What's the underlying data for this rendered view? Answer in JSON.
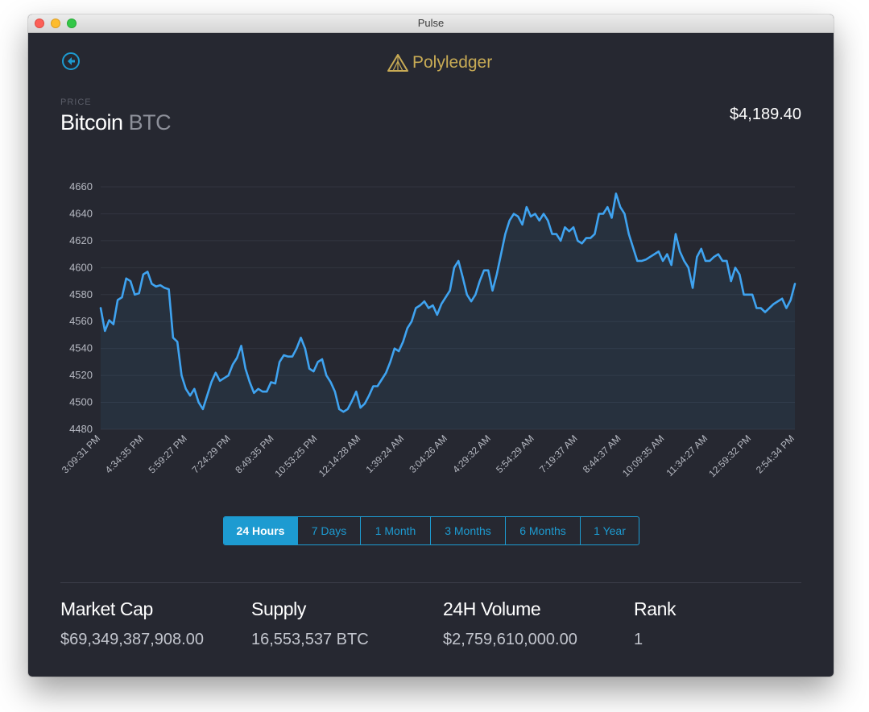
{
  "window": {
    "title": "Pulse"
  },
  "header": {
    "brand": "Polyledger",
    "brand_color": "#c8ab55",
    "back_icon": "back-arrow-icon"
  },
  "coin": {
    "label": "PRICE",
    "name": "Bitcoin",
    "symbol": "BTC",
    "price": "$4,189.40"
  },
  "colors": {
    "accent": "#1d9bd1",
    "line": "#3fa3f0",
    "background": "#262831"
  },
  "range": {
    "selected": "24 Hours",
    "options": [
      "24 Hours",
      "7 Days",
      "1 Month",
      "3 Months",
      "6 Months",
      "1 Year"
    ]
  },
  "stats": [
    {
      "label": "Market Cap",
      "value": "$69,349,387,908.00"
    },
    {
      "label": "Supply",
      "value": "16,553,537 BTC"
    },
    {
      "label": "24H Volume",
      "value": "$2,759,610,000.00"
    },
    {
      "label": "Rank",
      "value": "1"
    }
  ],
  "chart_data": {
    "type": "area",
    "xlabel": "",
    "ylabel": "",
    "ylim": [
      4480,
      4660
    ],
    "yticks": [
      4660,
      4640,
      4620,
      4600,
      4580,
      4560,
      4540,
      4520,
      4500,
      4480
    ],
    "grid": true,
    "legend": "none",
    "x_tick_labels": [
      "3:09:31 PM",
      "4:34:35 PM",
      "5:59:27 PM",
      "7:24:29 PM",
      "8:49:35 PM",
      "10:53:25 PM",
      "12:14:28 AM",
      "1:39:24 AM",
      "3:04:26 AM",
      "4:29:32 AM",
      "5:54:29 AM",
      "7:19:37 AM",
      "8:44:37 AM",
      "10:09:35 AM",
      "11:34:27 AM",
      "12:59:32 PM",
      "2:54:34 PM"
    ],
    "series": [
      {
        "values": [
          4570,
          4553,
          4561,
          4558,
          4576,
          4578,
          4592,
          4590,
          4580,
          4581,
          4595,
          4597,
          4588,
          4586,
          4587,
          4585,
          4584,
          4548,
          4545,
          4520,
          4510,
          4505,
          4510,
          4500,
          4495,
          4505,
          4515,
          4522,
          4516,
          4518,
          4520,
          4528,
          4533,
          4542,
          4525,
          4515,
          4507,
          4510,
          4508,
          4508,
          4515,
          4514,
          4530,
          4535,
          4534,
          4534,
          4540,
          4548,
          4540,
          4525,
          4523,
          4530,
          4532,
          4520,
          4515,
          4508,
          4495,
          4493,
          4495,
          4501,
          4508,
          4496,
          4499,
          4505,
          4512,
          4512,
          4517,
          4522,
          4530,
          4540,
          4538,
          4545,
          4555,
          4560,
          4570,
          4572,
          4575,
          4570,
          4572,
          4565,
          4573,
          4578,
          4583,
          4600,
          4605,
          4593,
          4580,
          4575,
          4580,
          4590,
          4598,
          4598,
          4583,
          4595,
          4610,
          4625,
          4635,
          4640,
          4638,
          4632,
          4645,
          4638,
          4640,
          4635,
          4640,
          4635,
          4625,
          4625,
          4620,
          4630,
          4627,
          4630,
          4620,
          4618,
          4622,
          4622,
          4625,
          4640,
          4640,
          4645,
          4637,
          4655,
          4645,
          4640,
          4625,
          4615,
          4605,
          4605,
          4606,
          4608,
          4610,
          4612,
          4605,
          4610,
          4602,
          4625,
          4612,
          4605,
          4600,
          4585,
          4608,
          4614,
          4605,
          4605,
          4608,
          4610,
          4605,
          4605,
          4590,
          4600,
          4595,
          4580,
          4580,
          4580,
          4570,
          4570,
          4567,
          4570,
          4573,
          4575,
          4577,
          4570,
          4576,
          4588
        ]
      }
    ]
  }
}
